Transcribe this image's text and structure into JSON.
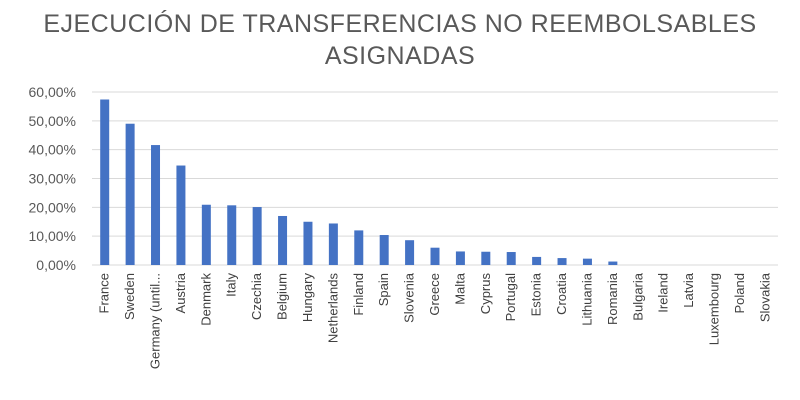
{
  "chart_data": {
    "type": "bar",
    "title": "EJECUCIÓN DE TRANSFERENCIAS NO REEMBOLSABLES ASIGNADAS",
    "xlabel": "",
    "ylabel": "",
    "ylim": [
      0,
      60
    ],
    "yticks": [
      "0,00%",
      "10,00%",
      "20,00%",
      "30,00%",
      "40,00%",
      "50,00%",
      "60,00%"
    ],
    "grid": true,
    "bar_color": "#4472C4",
    "categories": [
      "France",
      "Sweden",
      "Germany (until...",
      "Austria",
      "Denmark",
      "Italy",
      "Czechia",
      "Belgium",
      "Hungary",
      "Netherlands",
      "Finland",
      "Spain",
      "Slovenia",
      "Greece",
      "Malta",
      "Cyprus",
      "Portugal",
      "Estonia",
      "Croatia",
      "Lithuania",
      "Romania",
      "Bulgaria",
      "Ireland",
      "Latvia",
      "Luxembourg",
      "Poland",
      "Slovakia"
    ],
    "values": [
      57.4,
      49.0,
      41.6,
      34.5,
      20.9,
      20.7,
      20.1,
      17.0,
      15.0,
      14.4,
      12.0,
      10.4,
      8.6,
      6.0,
      4.7,
      4.6,
      4.5,
      2.8,
      2.4,
      2.2,
      1.2,
      0,
      0,
      0,
      0,
      0,
      0
    ]
  }
}
